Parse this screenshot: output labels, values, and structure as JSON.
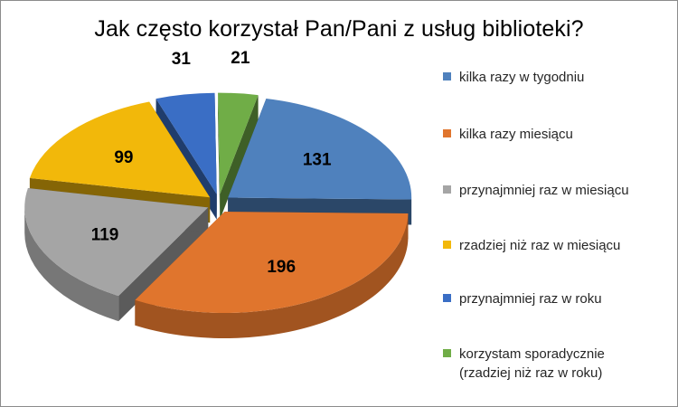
{
  "chart_data": {
    "type": "pie",
    "style": "3d-exploded",
    "title": "Jak często korzystał Pan/Pani  z usług biblioteki?",
    "legend_position": "right",
    "slices": [
      {
        "label": "kilka razy w tygodniu",
        "value": 131,
        "color": "#4f81bd"
      },
      {
        "label": "kilka razy miesiącu",
        "value": 196,
        "color": "#e0752d"
      },
      {
        "label": "przynajmniej raz w miesiącu",
        "value": 119,
        "color": "#a5a5a5"
      },
      {
        "label": "rzadziej niż raz w miesiącu",
        "value": 99,
        "color": "#f2b80a"
      },
      {
        "label": "przynajmniej raz w roku",
        "value": 31,
        "color": "#3a6ec5"
      },
      {
        "label": "korzystam sporadycznie (rzadziej niż raz w roku)",
        "value": 21,
        "color": "#70ad47"
      }
    ]
  }
}
